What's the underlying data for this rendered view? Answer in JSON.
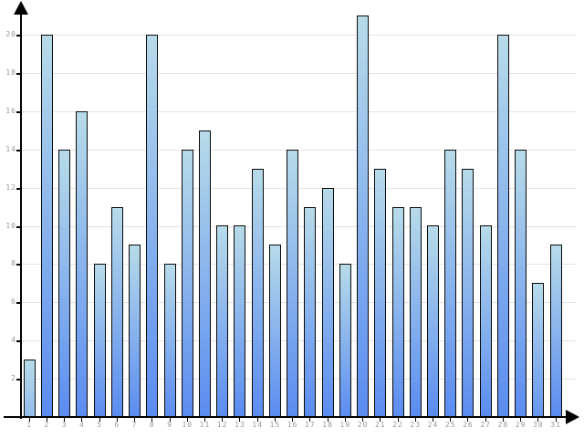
{
  "chart_data": {
    "type": "bar",
    "title": "",
    "xlabel": "",
    "ylabel": "",
    "categories": [
      "1",
      "2",
      "3",
      "4",
      "5",
      "6",
      "7",
      "8",
      "9",
      "10",
      "11",
      "12",
      "13",
      "14",
      "15",
      "16",
      "17",
      "18",
      "19",
      "20",
      "21",
      "22",
      "23",
      "24",
      "25",
      "26",
      "27",
      "28",
      "29",
      "30",
      "31"
    ],
    "values": [
      3,
      20,
      14,
      16,
      8,
      11,
      9,
      20,
      8,
      14,
      15,
      10,
      10,
      13,
      9,
      14,
      11,
      12,
      8,
      21,
      13,
      11,
      11,
      10,
      14,
      13,
      10,
      20,
      14,
      7,
      9
    ],
    "ylim": [
      0,
      21.5
    ],
    "y_ticks": [
      2,
      4,
      6,
      8,
      10,
      12,
      14,
      16,
      18,
      20
    ],
    "grid": true,
    "legend": "none",
    "colors": {
      "bar_gradient_top": "#b7dbe9",
      "bar_gradient_bottom": "#5b8cf0",
      "bar_border": "#0a0a0a",
      "gridline": "#e4e4e4",
      "axis": "#000000",
      "tick_label": "#999999",
      "background": "#ffffff"
    }
  }
}
